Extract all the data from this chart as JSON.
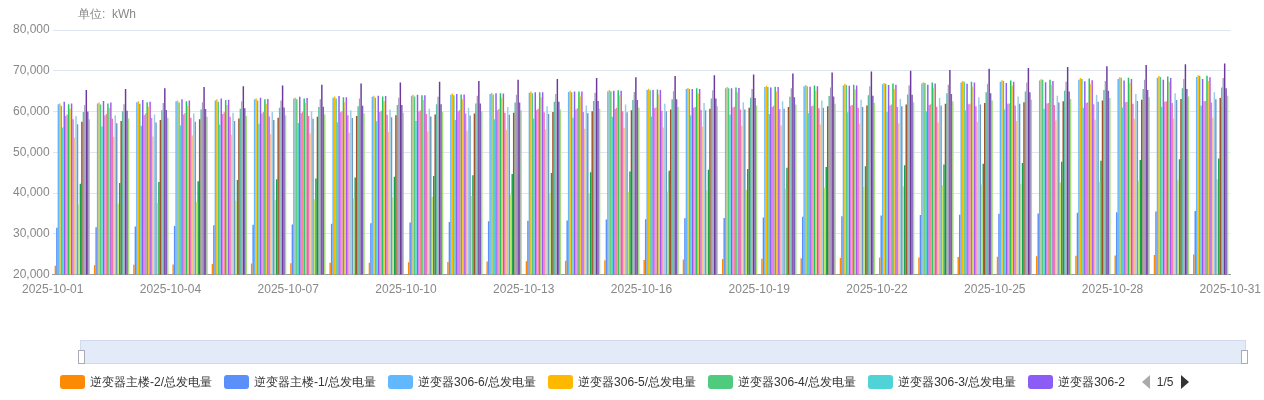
{
  "chart_data": {
    "type": "bar",
    "ylabel": "单位:  kWh",
    "legend": "bottom",
    "grid": "y",
    "annotations": [
      "1/5"
    ],
    "x": [
      "2025-10-01T12:00",
      "2025-10-02T12:00",
      "2025-10-03T12:00",
      "2025-10-04T12:00",
      "2025-10-05T12:00",
      "2025-10-06T12:00",
      "2025-10-07T12:00",
      "2025-10-08T12:00",
      "2025-10-09T12:00",
      "2025-10-10T12:00",
      "2025-10-11T12:00",
      "2025-10-12T12:00",
      "2025-10-13T12:00",
      "2025-10-14T12:00",
      "2025-10-15T12:00",
      "2025-10-16T12:00",
      "2025-10-17T12:00",
      "2025-10-18T12:00",
      "2025-10-19T12:00",
      "2025-10-20T12:00",
      "2025-10-21T12:00",
      "2025-10-22T12:00",
      "2025-10-23T12:00",
      "2025-10-24T12:00",
      "2025-10-25T12:00",
      "2025-10-26T12:00",
      "2025-10-27T12:00",
      "2025-10-28T12:00",
      "2025-10-29T12:00",
      "2025-10-30T12:00"
    ],
    "xlim": [
      "2025-10-01",
      "2025-10-31"
    ],
    "xticks": [
      "2025-10-01",
      "2025-10-04",
      "2025-10-07",
      "2025-10-10",
      "2025-10-13",
      "2025-10-16",
      "2025-10-19",
      "2025-10-22",
      "2025-10-25",
      "2025-10-28",
      "2025-10-31"
    ],
    "ylim": [
      20000,
      80000
    ],
    "yticks": [
      {
        "value": 20000,
        "label": "20,000"
      },
      {
        "value": 30000,
        "label": "30,000"
      },
      {
        "value": 40000,
        "label": "40,000"
      },
      {
        "value": 50000,
        "label": "50,000"
      },
      {
        "value": 60000,
        "label": "60,000"
      },
      {
        "value": 70000,
        "label": "70,000"
      },
      {
        "value": 80000,
        "label": "80,000"
      }
    ],
    "series": [
      {
        "name": "逆变器主楼-2/总发电量",
        "color": "#fd8a05",
        "values": [
          22200,
          22300,
          22400,
          22500,
          22600,
          22700,
          22800,
          22900,
          22900,
          23000,
          23100,
          23200,
          23300,
          23400,
          23500,
          23600,
          23700,
          23800,
          23900,
          24000,
          24100,
          24200,
          24200,
          24300,
          24400,
          24500,
          24600,
          24700,
          24800,
          24900
        ]
      },
      {
        "name": "逆变器主楼-1/总发电量",
        "color": "#5b8ff9",
        "values": [
          31500,
          31600,
          31800,
          31900,
          32100,
          32200,
          32300,
          32500,
          32600,
          32800,
          32900,
          33100,
          33200,
          33300,
          33500,
          33600,
          33800,
          33900,
          34000,
          34200,
          34300,
          34500,
          34600,
          34700,
          34900,
          35000,
          35200,
          35300,
          35500,
          35600
        ]
      },
      {
        "name": "逆变器306-6/总发电量",
        "color": "#61b8ff",
        "values": [
          61800,
          62000,
          62300,
          62500,
          62700,
          63000,
          63200,
          63400,
          63600,
          63900,
          64100,
          64300,
          64600,
          64800,
          65000,
          65300,
          65500,
          65700,
          66000,
          66200,
          66400,
          66700,
          66900,
          67100,
          67300,
          67600,
          67800,
          68000,
          68300,
          68500
        ]
      },
      {
        "name": "逆变器306-5/总发电量",
        "color": "#ffb800",
        "values": [
          62000,
          62200,
          62500,
          62700,
          63000,
          63200,
          63400,
          63700,
          63900,
          64100,
          64400,
          64600,
          64900,
          65100,
          65300,
          65600,
          65800,
          66000,
          66300,
          66500,
          66800,
          67000,
          67200,
          67500,
          67700,
          67900,
          68200,
          68400,
          68700,
          68900
        ]
      },
      {
        "name": "逆变器306-4/总发电量",
        "color": "#4fcb7d",
        "values": [
          61400,
          61700,
          61900,
          62200,
          62400,
          62700,
          63000,
          63200,
          63400,
          63700,
          64000,
          64200,
          64500,
          64700,
          65000,
          65200,
          65500,
          65700,
          66000,
          66200,
          66500,
          66800,
          67000,
          67300,
          67500,
          67800,
          68000,
          68300,
          68500,
          68800
        ]
      },
      {
        "name": "逆变器306-3/总发电量",
        "color": "#4fd3d6",
        "values": [
          56100,
          56300,
          56500,
          56600,
          56800,
          57000,
          57200,
          57400,
          57600,
          57700,
          57900,
          58100,
          58300,
          58500,
          58700,
          58800,
          59000,
          59200,
          59400,
          59600,
          59800,
          59900,
          60100,
          60300,
          60500,
          60700,
          60900,
          61000,
          61200,
          61400
        ]
      },
      {
        "name": "逆变器306-2",
        "color": "#8b5cf6",
        "values": [
          62400,
          62600,
          62800,
          63000,
          63200,
          63400,
          63600,
          63800,
          63900,
          64100,
          64300,
          64500,
          64700,
          64900,
          65100,
          65300,
          65500,
          65700,
          65900,
          66100,
          66300,
          66500,
          66600,
          66800,
          67000,
          67200,
          67400,
          67600,
          67800,
          68000
        ]
      },
      {
        "color": "#e87ef0",
        "values": [
          58900,
          59000,
          59100,
          59300,
          59400,
          59500,
          59600,
          59800,
          59900,
          60000,
          60100,
          60300,
          60400,
          60500,
          60600,
          60800,
          60900,
          61000,
          61100,
          61300,
          61400,
          61500,
          61600,
          61800,
          61900,
          62000,
          62100,
          62300,
          62400,
          62500
        ]
      },
      {
        "color": "#f28c8c",
        "values": [
          59300,
          59400,
          59500,
          59600,
          59800,
          59900,
          60000,
          60100,
          60200,
          60300,
          60400,
          60600,
          60700,
          60800,
          60900,
          61000,
          61100,
          61200,
          61400,
          61500,
          61600,
          61700,
          61800,
          61900,
          62000,
          62100,
          62300,
          62400,
          62500,
          62600
        ]
      },
      {
        "color": "#22c55e",
        "values": [
          61800,
          62000,
          62300,
          62500,
          62800,
          63000,
          63200,
          63500,
          63700,
          64000,
          64200,
          64500,
          64700,
          64900,
          65200,
          65400,
          65700,
          65900,
          66100,
          66400,
          66600,
          66900,
          67100,
          67300,
          67600,
          67800,
          68100,
          68300,
          68600,
          68800
        ]
      },
      {
        "color": "#f5c542",
        "values": [
          60700,
          60900,
          61200,
          61400,
          61600,
          61900,
          62100,
          62300,
          62600,
          62800,
          63000,
          63300,
          63500,
          63700,
          64000,
          64200,
          64400,
          64700,
          64900,
          65100,
          65400,
          65600,
          65800,
          66100,
          66300,
          66600,
          66800,
          67000,
          67300,
          67500
        ]
      },
      {
        "color": "#a855f7",
        "values": [
          62000,
          62200,
          62400,
          62700,
          62900,
          63100,
          63300,
          63500,
          63800,
          64000,
          64200,
          64400,
          64700,
          64900,
          65100,
          65300,
          65500,
          65800,
          66000,
          66200,
          66400,
          66600,
          66900,
          67100,
          67300,
          67500,
          67700,
          68000,
          68200,
          68400
        ]
      },
      {
        "color": "#f472b6",
        "values": [
          58100,
          58200,
          58400,
          58500,
          58700,
          58800,
          58900,
          59100,
          59200,
          59400,
          59500,
          59700,
          59800,
          59900,
          60100,
          60200,
          60400,
          60500,
          60600,
          60800,
          60900,
          61100,
          61200,
          61300,
          61500,
          61600,
          61800,
          61900,
          62100,
          62200
        ]
      },
      {
        "color": "#f6c48a",
        "values": [
          53600,
          53800,
          53900,
          54100,
          54300,
          54400,
          54600,
          54800,
          55000,
          55100,
          55300,
          55500,
          55600,
          55800,
          56000,
          56100,
          56300,
          56500,
          56600,
          56800,
          57000,
          57100,
          57300,
          57500,
          57700,
          57800,
          58000,
          58200,
          58300,
          58500
        ]
      },
      {
        "color": "#9ccde8",
        "values": [
          58900,
          59100,
          59300,
          59500,
          59700,
          59900,
          60100,
          60300,
          60500,
          60700,
          60900,
          61100,
          61300,
          61500,
          61700,
          61900,
          62100,
          62300,
          62500,
          62700,
          62900,
          63100,
          63300,
          63500,
          63700,
          63900,
          64100,
          64300,
          64500,
          64700
        ]
      },
      {
        "color": "#6b9ac4",
        "values": [
          56900,
          57100,
          57300,
          57500,
          57700,
          57900,
          58200,
          58400,
          58600,
          58800,
          59000,
          59200,
          59400,
          59600,
          59800,
          60100,
          60300,
          60500,
          60700,
          60900,
          61100,
          61300,
          61500,
          61700,
          61900,
          62200,
          62400,
          62600,
          62800,
          63000
        ]
      },
      {
        "color": "#c5e86c",
        "values": [
          37200,
          37400,
          37600,
          37800,
          38100,
          38300,
          38500,
          38700,
          38900,
          39100,
          39300,
          39600,
          39800,
          40000,
          40200,
          40400,
          40600,
          40800,
          41100,
          41300,
          41500,
          41700,
          41900,
          42100,
          42300,
          42600,
          42800,
          43000,
          43200,
          43400
        ]
      },
      {
        "color": "#16a34a",
        "values": [
          42300,
          42500,
          42700,
          42900,
          43200,
          43400,
          43600,
          43800,
          44000,
          44200,
          44400,
          44700,
          44900,
          45100,
          45300,
          45500,
          45700,
          45900,
          46200,
          46400,
          46600,
          46800,
          47000,
          47200,
          47400,
          47700,
          47900,
          48100,
          48300,
          48500
        ]
      },
      {
        "color": "#a0522d",
        "values": [
          57500,
          57700,
          57900,
          58100,
          58300,
          58500,
          58700,
          58900,
          59100,
          59300,
          59500,
          59700,
          59900,
          60100,
          60300,
          60500,
          60700,
          60900,
          61100,
          61300,
          61500,
          61700,
          61900,
          62100,
          62300,
          62500,
          62700,
          62900,
          63100,
          63300
        ]
      },
      {
        "color": "#5fbfa5",
        "values": [
          59900,
          60100,
          60300,
          60500,
          60700,
          60900,
          61100,
          61300,
          61600,
          61800,
          62000,
          62200,
          62400,
          62600,
          62800,
          63000,
          63200,
          63400,
          63600,
          63800,
          64000,
          64200,
          64500,
          64700,
          64900,
          65100,
          65300,
          65500,
          65700,
          65900
        ]
      },
      {
        "color": "#a79bbf",
        "values": [
          61600,
          61800,
          62100,
          62300,
          62500,
          62700,
          63000,
          63200,
          63400,
          63600,
          63900,
          64100,
          64300,
          64600,
          64800,
          65000,
          65200,
          65500,
          65700,
          65900,
          66200,
          66400,
          66600,
          66800,
          67100,
          67300,
          67500,
          67800,
          68000,
          68200
        ]
      },
      {
        "color": "#6d3a9c",
        "values": [
          65300,
          65500,
          65700,
          66000,
          66200,
          66400,
          66600,
          66900,
          67100,
          67300,
          67500,
          67800,
          68000,
          68200,
          68400,
          68700,
          68900,
          69100,
          69300,
          69600,
          69800,
          70000,
          70200,
          70500,
          70700,
          70900,
          71100,
          71400,
          71600,
          71800
        ]
      },
      {
        "color": "#7c5cbf",
        "values": [
          60000,
          60200,
          60400,
          60600,
          60800,
          61000,
          61200,
          61400,
          61600,
          61800,
          62000,
          62200,
          62400,
          62600,
          62800,
          63000,
          63200,
          63300,
          63500,
          63700,
          63900,
          64100,
          64300,
          64500,
          64700,
          64900,
          65100,
          65300,
          65500,
          65700
        ]
      },
      {
        "color": "#a3e07a",
        "values": [
          58100,
          58300,
          58500,
          58700,
          58900,
          59100,
          59300,
          59500,
          59700,
          59900,
          60100,
          60300,
          60500,
          60700,
          60900,
          61100,
          61300,
          61500,
          61700,
          61900,
          62100,
          62300,
          62500,
          62700,
          62900,
          63100,
          63300,
          63500,
          63700,
          63900
        ]
      }
    ]
  }
}
